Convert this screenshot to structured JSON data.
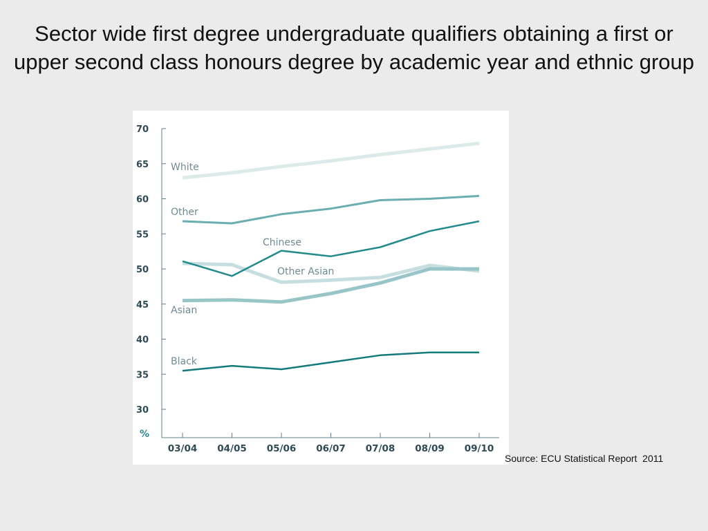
{
  "slide": {
    "title": "Sector wide first degree undergraduate qualifiers obtaining a first or upper second class honours degree by academic year and ethnic group",
    "source": "Source: ECU Statistical Report  2011"
  },
  "chart_data": {
    "type": "line",
    "title": "",
    "xlabel": "",
    "ylabel": "%",
    "ylim": [
      30,
      70
    ],
    "yticks": [
      70,
      65,
      60,
      55,
      50,
      45,
      40,
      35,
      30
    ],
    "grid": false,
    "legend": "none (series labelled inline)",
    "categories": [
      "03/04",
      "04/05",
      "05/06",
      "06/07",
      "07/08",
      "08/09",
      "09/10"
    ],
    "series": [
      {
        "name": "White",
        "values": [
          63.0,
          63.7,
          64.6,
          65.4,
          66.3,
          67.1,
          67.9
        ],
        "color": "#dcebe9",
        "width": 5
      },
      {
        "name": "Other",
        "values": [
          56.8,
          56.5,
          57.8,
          58.6,
          59.8,
          60.0,
          60.4
        ],
        "color": "#6aaeb1",
        "width": 3
      },
      {
        "name": "Other Asian",
        "values": [
          50.8,
          50.6,
          48.1,
          48.4,
          48.8,
          50.5,
          49.7
        ],
        "color": "#c6dee0",
        "width": 5
      },
      {
        "name": "Asian",
        "values": [
          45.5,
          45.6,
          45.3,
          46.5,
          48.0,
          50.0,
          50.0
        ],
        "color": "#98c6c8",
        "width": 5
      },
      {
        "name": "Chinese",
        "values": [
          51.1,
          49.0,
          52.6,
          51.8,
          53.1,
          55.4,
          56.8
        ],
        "color": "#238a8c",
        "width": 2.5
      },
      {
        "name": "Black",
        "values": [
          35.5,
          36.2,
          35.7,
          36.7,
          37.7,
          38.1,
          38.1
        ],
        "color": "#147a7c",
        "width": 2.5
      }
    ]
  }
}
